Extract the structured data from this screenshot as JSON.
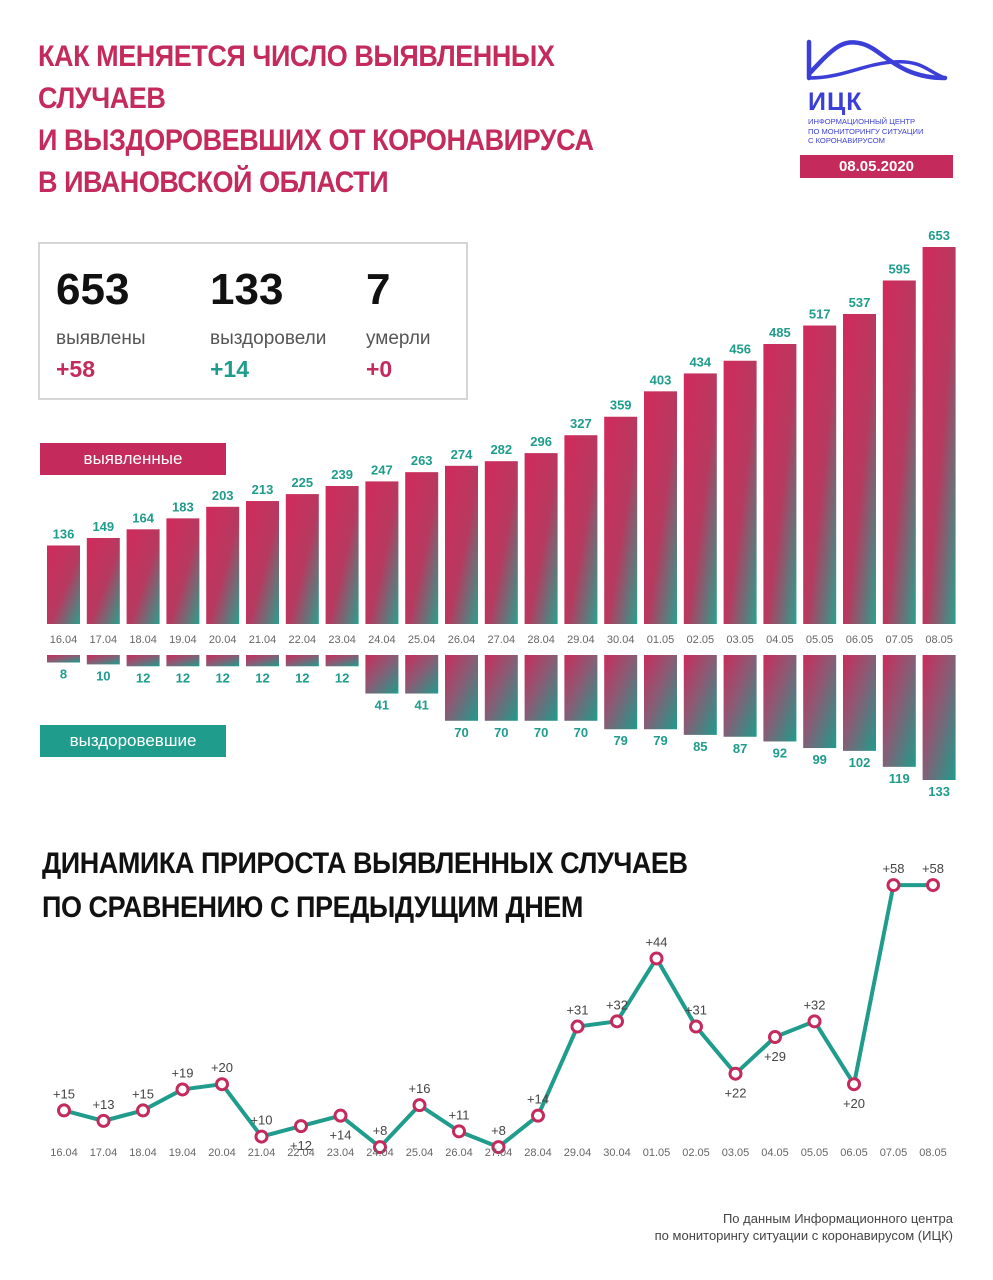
{
  "header": {
    "title_lines": [
      "КАК МЕНЯЕТСЯ ЧИСЛО ВЫЯВЛЕННЫХ СЛУЧАЕВ",
      "И ВЫЗДОРОВЕВШИХ ОТ КОРОНАВИРУСА",
      "В ИВАНОВСКОЙ ОБЛАСТИ"
    ],
    "logo_text": "ИЦК",
    "logo_sub_lines": [
      "Информационный центр",
      "по мониторингу ситуации",
      "с коронавирусом"
    ],
    "date": "08.05.2020"
  },
  "stats": [
    {
      "value": "653",
      "label": "выявлены",
      "delta": "+58",
      "color": "#c42a5c"
    },
    {
      "value": "133",
      "label": "выздоровели",
      "delta": "+14",
      "color": "#1f9c8c"
    },
    {
      "value": "7",
      "label": "умерли",
      "delta": "+0",
      "color": "#c42a5c"
    }
  ],
  "legend": {
    "detected_label": "выявленные",
    "recovered_label": "выздоровевшие"
  },
  "colors": {
    "accent": "#c42a5c",
    "teal": "#1f9c8c",
    "logo_blue": "#3b3fd8"
  },
  "chart_data": [
    {
      "type": "bar",
      "categories": [
        "16.04",
        "17.04",
        "18.04",
        "19.04",
        "20.04",
        "21.04",
        "22.04",
        "23.04",
        "24.04",
        "25.04",
        "26.04",
        "27.04",
        "28.04",
        "29.04",
        "30.04",
        "01.05",
        "02.05",
        "03.05",
        "04.05",
        "05.05",
        "06.05",
        "07.05",
        "08.05"
      ],
      "series": [
        {
          "name": "выявленные",
          "values": [
            136,
            149,
            164,
            183,
            203,
            213,
            225,
            239,
            247,
            263,
            274,
            282,
            296,
            327,
            359,
            403,
            434,
            456,
            485,
            517,
            537,
            595,
            653
          ]
        },
        {
          "name": "выздоровевшие",
          "values": [
            8,
            10,
            12,
            12,
            12,
            12,
            12,
            12,
            41,
            41,
            70,
            70,
            70,
            70,
            79,
            79,
            85,
            87,
            92,
            99,
            102,
            119,
            133
          ]
        }
      ]
    },
    {
      "type": "line",
      "title": "ДИНАМИКА ПРИРОСТА ВЫЯВЛЕННЫХ СЛУЧАЕВ ПО СРАВНЕНИЮ С ПРЕДЫДУЩИМ ДНЕМ",
      "title_lines": [
        "ДИНАМИКА ПРИРОСТА ВЫЯВЛЕННЫХ СЛУЧАЕВ",
        "ПО СРАВНЕНИЮ С ПРЕДЫДУЩИМ ДНЕМ"
      ],
      "x": [
        "16.04",
        "17.04",
        "18.04",
        "19.04",
        "20.04",
        "21.04",
        "22.04",
        "23.04",
        "24.04",
        "25.04",
        "26.04",
        "27.04",
        "28.04",
        "29.04",
        "30.04",
        "01.05",
        "02.05",
        "03.05",
        "04.05",
        "05.05",
        "06.05",
        "07.05",
        "08.05"
      ],
      "values": [
        15,
        13,
        15,
        19,
        20,
        10,
        12,
        14,
        8,
        16,
        11,
        8,
        14,
        31,
        32,
        44,
        31,
        22,
        29,
        32,
        20,
        58,
        58
      ],
      "labels": [
        "+15",
        "+13",
        "+15",
        "+19",
        "+20",
        "+10",
        "+12",
        "+14",
        "+8",
        "+16",
        "+11",
        "+8",
        "+14",
        "+31",
        "+32",
        "+44",
        "+31",
        "+22",
        "+29",
        "+32",
        "+20",
        "+58",
        "+58"
      ],
      "label_position": [
        "above",
        "above",
        "above",
        "above",
        "above",
        "above",
        "below",
        "below",
        "above",
        "above",
        "above",
        "above",
        "above",
        "above",
        "above",
        "above",
        "above",
        "below",
        "below",
        "above",
        "below",
        "above",
        "above"
      ]
    }
  ],
  "source_lines": [
    "По данным Информационного центра",
    "по мониторингу ситуации с коронавирусом (ИЦК)"
  ]
}
